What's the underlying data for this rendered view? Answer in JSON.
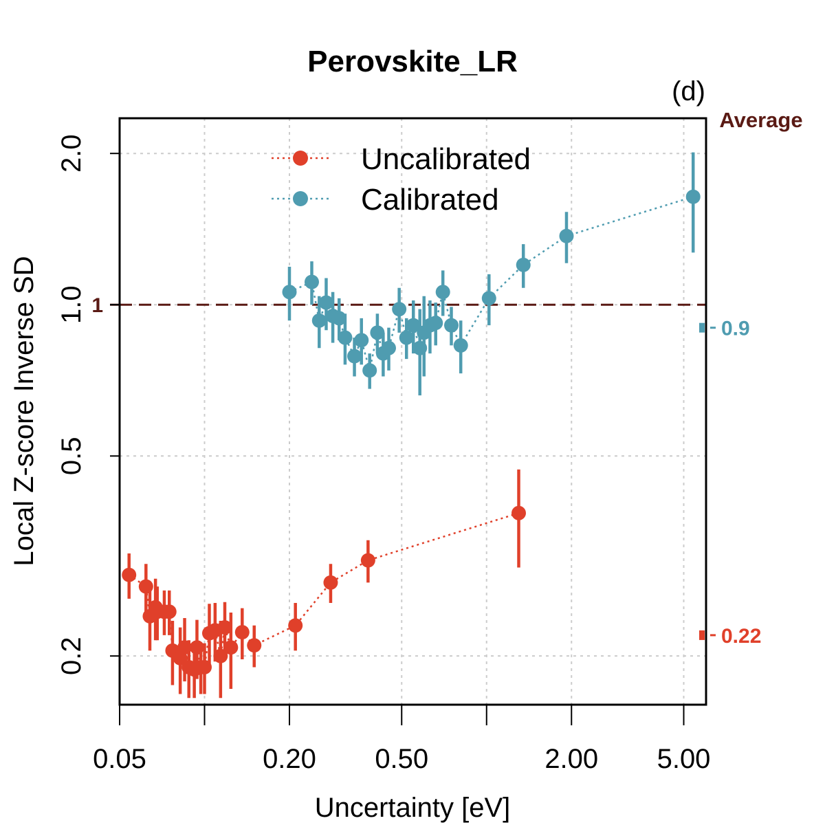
{
  "chart_data": {
    "type": "scatter",
    "title": "Perovskite_LR",
    "panel_label": "(d)",
    "xlabel": "Uncertainty [eV]",
    "ylabel": "Local Z-score Inverse SD",
    "x_scale": "log",
    "y_scale": "log",
    "xlim": [
      0.05,
      6.0
    ],
    "ylim": [
      0.16,
      2.35
    ],
    "x_ticks": [
      {
        "value": 0.05,
        "label": "0.05"
      },
      {
        "value": 0.1,
        "label": ""
      },
      {
        "value": 0.2,
        "label": "0.20"
      },
      {
        "value": 0.5,
        "label": "0.50"
      },
      {
        "value": 1.0,
        "label": ""
      },
      {
        "value": 2.0,
        "label": "2.00"
      },
      {
        "value": 5.0,
        "label": "5.00"
      }
    ],
    "y_ticks": [
      {
        "value": 0.2,
        "label": "0.2"
      },
      {
        "value": 0.5,
        "label": "0.5"
      },
      {
        "value": 1.0,
        "label": "1.0"
      },
      {
        "value": 2.0,
        "label": "2.0"
      }
    ],
    "grid": true,
    "reference_line": {
      "value": 1.0,
      "label": "1",
      "color": "#5a1a14",
      "style": "dashed"
    },
    "average_header": "Average",
    "legend": {
      "position": "top-center"
    },
    "series": [
      {
        "name": "Uncalibrated",
        "color": "#e0402a",
        "line_style": "dotted",
        "average": {
          "value": 0.22,
          "label": "0.22"
        },
        "points": [
          {
            "x": 0.054,
            "y": 0.29,
            "lo": 0.26,
            "hi": 0.32
          },
          {
            "x": 0.062,
            "y": 0.275,
            "lo": 0.245,
            "hi": 0.305
          },
          {
            "x": 0.064,
            "y": 0.24,
            "lo": 0.205,
            "hi": 0.275
          },
          {
            "x": 0.067,
            "y": 0.25,
            "lo": 0.215,
            "hi": 0.285
          },
          {
            "x": 0.068,
            "y": 0.245,
            "lo": 0.215,
            "hi": 0.275
          },
          {
            "x": 0.072,
            "y": 0.245,
            "lo": 0.22,
            "hi": 0.27
          },
          {
            "x": 0.075,
            "y": 0.245,
            "lo": 0.22,
            "hi": 0.27
          },
          {
            "x": 0.077,
            "y": 0.205,
            "lo": 0.175,
            "hi": 0.235
          },
          {
            "x": 0.082,
            "y": 0.198,
            "lo": 0.168,
            "hi": 0.228
          },
          {
            "x": 0.085,
            "y": 0.208,
            "lo": 0.178,
            "hi": 0.238
          },
          {
            "x": 0.088,
            "y": 0.19,
            "lo": 0.165,
            "hi": 0.215
          },
          {
            "x": 0.092,
            "y": 0.188,
            "lo": 0.165,
            "hi": 0.21
          },
          {
            "x": 0.094,
            "y": 0.208,
            "lo": 0.18,
            "hi": 0.236
          },
          {
            "x": 0.097,
            "y": 0.19,
            "lo": 0.168,
            "hi": 0.212
          },
          {
            "x": 0.1,
            "y": 0.19,
            "lo": 0.168,
            "hi": 0.212
          },
          {
            "x": 0.104,
            "y": 0.222,
            "lo": 0.19,
            "hi": 0.254
          },
          {
            "x": 0.109,
            "y": 0.225,
            "lo": 0.195,
            "hi": 0.255
          },
          {
            "x": 0.114,
            "y": 0.2,
            "lo": 0.165,
            "hi": 0.235
          },
          {
            "x": 0.118,
            "y": 0.228,
            "lo": 0.2,
            "hi": 0.256
          },
          {
            "x": 0.124,
            "y": 0.208,
            "lo": 0.172,
            "hi": 0.244
          },
          {
            "x": 0.136,
            "y": 0.223,
            "lo": 0.197,
            "hi": 0.249
          },
          {
            "x": 0.15,
            "y": 0.21,
            "lo": 0.19,
            "hi": 0.23
          },
          {
            "x": 0.21,
            "y": 0.23,
            "lo": 0.205,
            "hi": 0.255
          },
          {
            "x": 0.28,
            "y": 0.28,
            "lo": 0.255,
            "hi": 0.305
          },
          {
            "x": 0.38,
            "y": 0.31,
            "lo": 0.28,
            "hi": 0.34
          },
          {
            "x": 1.3,
            "y": 0.385,
            "lo": 0.3,
            "hi": 0.47
          }
        ]
      },
      {
        "name": "Calibrated",
        "color": "#4f9cb0",
        "line_style": "dotted",
        "average": {
          "value": 0.9,
          "label": "0.9"
        },
        "points": [
          {
            "x": 0.2,
            "y": 1.06,
            "lo": 0.93,
            "hi": 1.19
          },
          {
            "x": 0.24,
            "y": 1.11,
            "lo": 1.0,
            "hi": 1.22
          },
          {
            "x": 0.255,
            "y": 0.93,
            "lo": 0.82,
            "hi": 1.04
          },
          {
            "x": 0.27,
            "y": 1.01,
            "lo": 0.89,
            "hi": 1.13
          },
          {
            "x": 0.285,
            "y": 0.95,
            "lo": 0.84,
            "hi": 1.06
          },
          {
            "x": 0.3,
            "y": 0.94,
            "lo": 0.85,
            "hi": 1.03
          },
          {
            "x": 0.315,
            "y": 0.86,
            "lo": 0.76,
            "hi": 0.96
          },
          {
            "x": 0.34,
            "y": 0.79,
            "lo": 0.72,
            "hi": 0.86
          },
          {
            "x": 0.36,
            "y": 0.85,
            "lo": 0.76,
            "hi": 0.94
          },
          {
            "x": 0.385,
            "y": 0.74,
            "lo": 0.68,
            "hi": 0.8
          },
          {
            "x": 0.41,
            "y": 0.88,
            "lo": 0.8,
            "hi": 0.96
          },
          {
            "x": 0.43,
            "y": 0.8,
            "lo": 0.72,
            "hi": 0.88
          },
          {
            "x": 0.45,
            "y": 0.82,
            "lo": 0.74,
            "hi": 0.9
          },
          {
            "x": 0.49,
            "y": 0.98,
            "lo": 0.88,
            "hi": 1.08
          },
          {
            "x": 0.52,
            "y": 0.86,
            "lo": 0.78,
            "hi": 0.94
          },
          {
            "x": 0.55,
            "y": 0.91,
            "lo": 0.8,
            "hi": 1.02
          },
          {
            "x": 0.58,
            "y": 0.82,
            "lo": 0.66,
            "hi": 0.98
          },
          {
            "x": 0.6,
            "y": 0.88,
            "lo": 0.72,
            "hi": 1.04
          },
          {
            "x": 0.63,
            "y": 0.91,
            "lo": 0.8,
            "hi": 1.02
          },
          {
            "x": 0.66,
            "y": 0.92,
            "lo": 0.83,
            "hi": 1.01
          },
          {
            "x": 0.7,
            "y": 1.06,
            "lo": 0.95,
            "hi": 1.17
          },
          {
            "x": 0.75,
            "y": 0.91,
            "lo": 0.83,
            "hi": 0.99
          },
          {
            "x": 0.81,
            "y": 0.83,
            "lo": 0.73,
            "hi": 0.93
          },
          {
            "x": 1.02,
            "y": 1.03,
            "lo": 0.91,
            "hi": 1.15
          },
          {
            "x": 1.35,
            "y": 1.2,
            "lo": 1.08,
            "hi": 1.32
          },
          {
            "x": 1.92,
            "y": 1.37,
            "lo": 1.21,
            "hi": 1.53
          },
          {
            "x": 5.4,
            "y": 1.64,
            "lo": 1.27,
            "hi": 2.01
          }
        ]
      }
    ]
  }
}
